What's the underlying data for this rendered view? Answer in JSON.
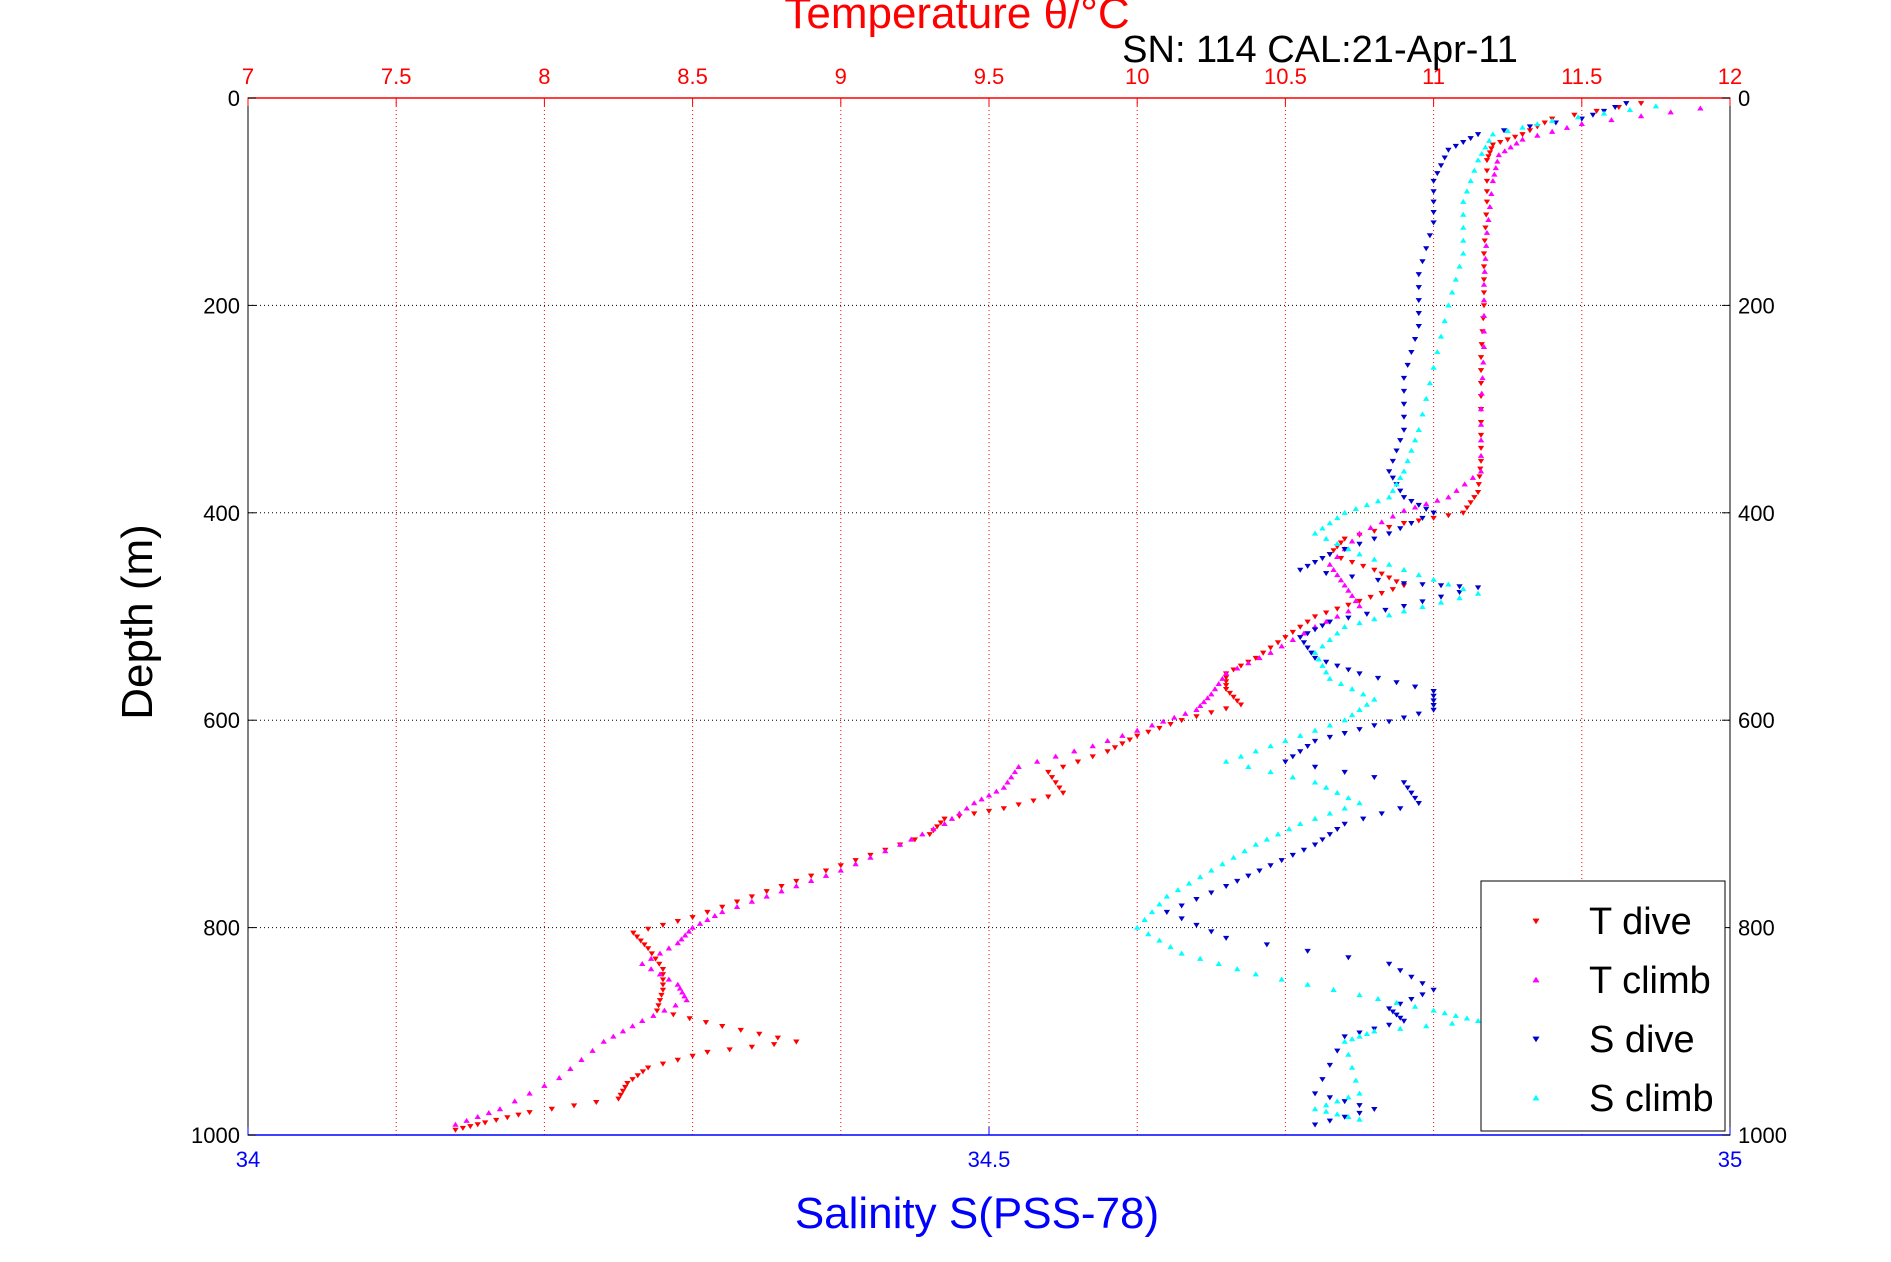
{
  "chart_data": {
    "type": "scatter",
    "title": "Temperature θ/°C",
    "subtitle": "SN: 114  CAL:21-Apr-11",
    "xlabel_top": "Temperature θ/°C",
    "xlabel_bottom": "Salinity S(PSS-78)",
    "ylabel": "Depth (m)",
    "xlim_top": [
      7,
      12
    ],
    "xlim_bottom": [
      34,
      35
    ],
    "ylim": [
      0,
      1000
    ],
    "y_reversed": true,
    "grid": true,
    "legend_position": "bottom-right",
    "ticks_top": [
      "7",
      "7.5",
      "8",
      "8.5",
      "9",
      "9.5",
      "10",
      "10.5",
      "11",
      "11.5",
      "12"
    ],
    "ticks_top_values": [
      7,
      7.5,
      8,
      8.5,
      9,
      9.5,
      10,
      10.5,
      11,
      11.5,
      12
    ],
    "ticks_bottom": [
      "34",
      "34.5",
      "35"
    ],
    "ticks_bottom_values": [
      34,
      34.5,
      35
    ],
    "ticks_y": [
      "0",
      "200",
      "400",
      "600",
      "800",
      "1000"
    ],
    "ticks_y_values": [
      0,
      200,
      400,
      600,
      800,
      1000
    ],
    "colors": {
      "temperature_axis": "#ff0000",
      "salinity_axis": "#0000ff",
      "t_dive": "#ff0000",
      "t_climb": "#ff00ff",
      "s_dive": "#0000cc",
      "s_climb": "#00ffff"
    },
    "series": [
      {
        "name": "T dive",
        "axis": "temperature",
        "marker": "triangle-down",
        "color": "#ff0000",
        "points": [
          [
            11.7,
            5
          ],
          [
            11.4,
            20
          ],
          [
            11.3,
            35
          ],
          [
            11.2,
            45
          ],
          [
            11.18,
            60
          ],
          [
            11.18,
            100
          ],
          [
            11.17,
            150
          ],
          [
            11.17,
            200
          ],
          [
            11.16,
            250
          ],
          [
            11.16,
            300
          ],
          [
            11.16,
            350
          ],
          [
            11.15,
            380
          ],
          [
            11.1,
            400
          ],
          [
            10.9,
            410
          ],
          [
            10.7,
            425
          ],
          [
            10.65,
            440
          ],
          [
            10.8,
            455
          ],
          [
            10.9,
            470
          ],
          [
            10.75,
            485
          ],
          [
            10.6,
            500
          ],
          [
            10.5,
            520
          ],
          [
            10.4,
            540
          ],
          [
            10.3,
            555
          ],
          [
            10.3,
            570
          ],
          [
            10.35,
            585
          ],
          [
            10.15,
            600
          ],
          [
            10,
            615
          ],
          [
            9.9,
            630
          ],
          [
            9.7,
            650
          ],
          [
            9.75,
            670
          ],
          [
            9.55,
            685
          ],
          [
            9.35,
            695
          ],
          [
            9.3,
            710
          ],
          [
            9.1,
            730
          ],
          [
            8.9,
            750
          ],
          [
            8.7,
            770
          ],
          [
            8.5,
            790
          ],
          [
            8.3,
            805
          ],
          [
            8.35,
            820
          ],
          [
            8.4,
            840
          ],
          [
            8.4,
            860
          ],
          [
            8.38,
            880
          ],
          [
            8.6,
            895
          ],
          [
            8.85,
            910
          ],
          [
            8.55,
            920
          ],
          [
            8.35,
            935
          ],
          [
            8.28,
            950
          ],
          [
            8.25,
            965
          ],
          [
            7.95,
            978
          ],
          [
            7.8,
            988
          ],
          [
            7.7,
            995
          ]
        ]
      },
      {
        "name": "T climb",
        "axis": "temperature",
        "marker": "triangle-up",
        "color": "#ff00ff",
        "points": [
          [
            11.9,
            10
          ],
          [
            11.5,
            25
          ],
          [
            11.3,
            40
          ],
          [
            11.22,
            55
          ],
          [
            11.2,
            80
          ],
          [
            11.18,
            130
          ],
          [
            11.17,
            180
          ],
          [
            11.17,
            240
          ],
          [
            11.16,
            300
          ],
          [
            11.16,
            360
          ],
          [
            11.05,
            385
          ],
          [
            10.9,
            398
          ],
          [
            10.75,
            420
          ],
          [
            10.65,
            450
          ],
          [
            10.7,
            470
          ],
          [
            10.75,
            490
          ],
          [
            10.6,
            510
          ],
          [
            10.45,
            535
          ],
          [
            10.3,
            555
          ],
          [
            10.25,
            575
          ],
          [
            10.2,
            590
          ],
          [
            10.05,
            605
          ],
          [
            9.85,
            625
          ],
          [
            9.6,
            645
          ],
          [
            9.55,
            665
          ],
          [
            9.45,
            680
          ],
          [
            9.35,
            700
          ],
          [
            9.2,
            720
          ],
          [
            9.0,
            745
          ],
          [
            8.8,
            765
          ],
          [
            8.6,
            785
          ],
          [
            8.5,
            800
          ],
          [
            8.45,
            815
          ],
          [
            8.33,
            835
          ],
          [
            8.45,
            855
          ],
          [
            8.48,
            870
          ],
          [
            8.33,
            890
          ],
          [
            8.2,
            910
          ],
          [
            8.05,
            945
          ],
          [
            7.85,
            975
          ],
          [
            7.7,
            990
          ]
        ]
      },
      {
        "name": "S dive",
        "axis": "salinity",
        "marker": "triangle-down",
        "color": "#0000cc",
        "points": [
          [
            34.93,
            5
          ],
          [
            34.9,
            20
          ],
          [
            34.83,
            35
          ],
          [
            34.81,
            50
          ],
          [
            34.8,
            80
          ],
          [
            34.8,
            120
          ],
          [
            34.79,
            170
          ],
          [
            34.79,
            220
          ],
          [
            34.78,
            270
          ],
          [
            34.78,
            320
          ],
          [
            34.77,
            360
          ],
          [
            34.78,
            385
          ],
          [
            34.8,
            400
          ],
          [
            34.77,
            420
          ],
          [
            34.73,
            440
          ],
          [
            34.71,
            455
          ],
          [
            34.78,
            468
          ],
          [
            34.83,
            472
          ],
          [
            34.78,
            490
          ],
          [
            34.73,
            505
          ],
          [
            34.71,
            520
          ],
          [
            34.72,
            540
          ],
          [
            34.75,
            555
          ],
          [
            34.8,
            572
          ],
          [
            34.8,
            590
          ],
          [
            34.76,
            605
          ],
          [
            34.72,
            620
          ],
          [
            34.7,
            640
          ],
          [
            34.78,
            660
          ],
          [
            34.79,
            680
          ],
          [
            34.74,
            700
          ],
          [
            34.72,
            720
          ],
          [
            34.69,
            740
          ],
          [
            34.66,
            760
          ],
          [
            34.62,
            785
          ],
          [
            34.66,
            810
          ],
          [
            34.77,
            835
          ],
          [
            34.8,
            860
          ],
          [
            34.77,
            878
          ],
          [
            34.78,
            890
          ],
          [
            34.74,
            905
          ],
          [
            34.72,
            960
          ],
          [
            34.76,
            975
          ],
          [
            34.72,
            990
          ]
        ]
      },
      {
        "name": "S climb",
        "axis": "salinity",
        "marker": "triangle-up",
        "color": "#00ffff",
        "points": [
          [
            34.95,
            8
          ],
          [
            34.88,
            22
          ],
          [
            34.84,
            35
          ],
          [
            34.83,
            60
          ],
          [
            34.82,
            100
          ],
          [
            34.82,
            150
          ],
          [
            34.81,
            200
          ],
          [
            34.8,
            260
          ],
          [
            34.79,
            320
          ],
          [
            34.78,
            360
          ],
          [
            34.77,
            385
          ],
          [
            34.74,
            400
          ],
          [
            34.72,
            420
          ],
          [
            34.75,
            440
          ],
          [
            34.79,
            460
          ],
          [
            34.83,
            478
          ],
          [
            34.78,
            495
          ],
          [
            34.74,
            510
          ],
          [
            34.72,
            535
          ],
          [
            34.73,
            560
          ],
          [
            34.76,
            580
          ],
          [
            34.74,
            600
          ],
          [
            34.7,
            620
          ],
          [
            34.66,
            640
          ],
          [
            34.72,
            660
          ],
          [
            34.75,
            680
          ],
          [
            34.71,
            700
          ],
          [
            34.68,
            720
          ],
          [
            34.65,
            745
          ],
          [
            34.62,
            770
          ],
          [
            34.6,
            800
          ],
          [
            34.63,
            825
          ],
          [
            34.68,
            845
          ],
          [
            34.75,
            865
          ],
          [
            34.8,
            880
          ],
          [
            34.83,
            890
          ],
          [
            34.76,
            900
          ],
          [
            34.74,
            910
          ],
          [
            34.75,
            960
          ],
          [
            34.72,
            975
          ],
          [
            34.75,
            985
          ]
        ]
      }
    ]
  }
}
